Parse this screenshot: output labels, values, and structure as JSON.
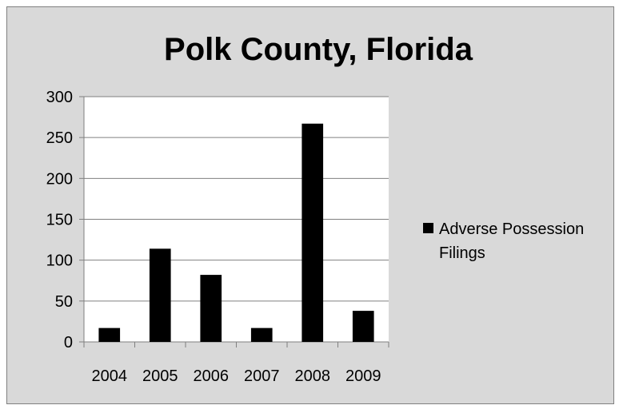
{
  "chart_data": {
    "type": "bar",
    "title": "Polk County, Florida",
    "xlabel": "",
    "ylabel": "",
    "categories": [
      "2004",
      "2005",
      "2006",
      "2007",
      "2008",
      "2009"
    ],
    "series": [
      {
        "name": "Adverse Possession Filings",
        "values": [
          17,
          114,
          82,
          17,
          267,
          38
        ],
        "color": "#000000"
      }
    ],
    "ylim": [
      0,
      300
    ],
    "yticks": [
      0,
      50,
      100,
      150,
      200,
      250,
      300
    ],
    "grid": true,
    "legend_position": "right"
  },
  "colors": {
    "background": "#d9d9d9",
    "plot_area": "#ffffff",
    "gridline": "#808080",
    "bar": "#000000"
  }
}
